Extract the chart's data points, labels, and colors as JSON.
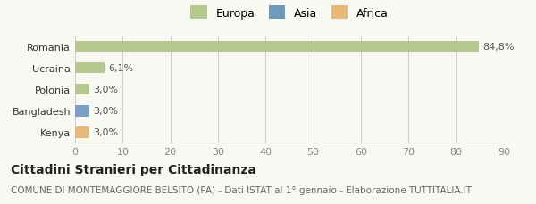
{
  "categories": [
    "Romania",
    "Ucraina",
    "Polonia",
    "Bangladesh",
    "Kenya"
  ],
  "values": [
    84.8,
    6.1,
    3.0,
    3.0,
    3.0
  ],
  "labels": [
    "84,8%",
    "6,1%",
    "3,0%",
    "3,0%",
    "3,0%"
  ],
  "colors": [
    "#b5c98e",
    "#b5c98e",
    "#b5c98e",
    "#7b9fc4",
    "#e8b87a"
  ],
  "legend_items": [
    {
      "label": "Europa",
      "color": "#b5c98e"
    },
    {
      "label": "Asia",
      "color": "#6d9abf"
    },
    {
      "label": "Africa",
      "color": "#e8b87a"
    }
  ],
  "xlim": [
    0,
    90
  ],
  "xticks": [
    0,
    10,
    20,
    30,
    40,
    50,
    60,
    70,
    80,
    90
  ],
  "title": "Cittadini Stranieri per Cittadinanza",
  "subtitle": "COMUNE DI MONTEMAGGIORE BELSITO (PA) - Dati ISTAT al 1° gennaio - Elaborazione TUTTITALIA.IT",
  "background_color": "#f9f9f4",
  "bar_height": 0.52,
  "title_fontsize": 10,
  "subtitle_fontsize": 7.5,
  "tick_fontsize": 8,
  "label_fontsize": 8
}
